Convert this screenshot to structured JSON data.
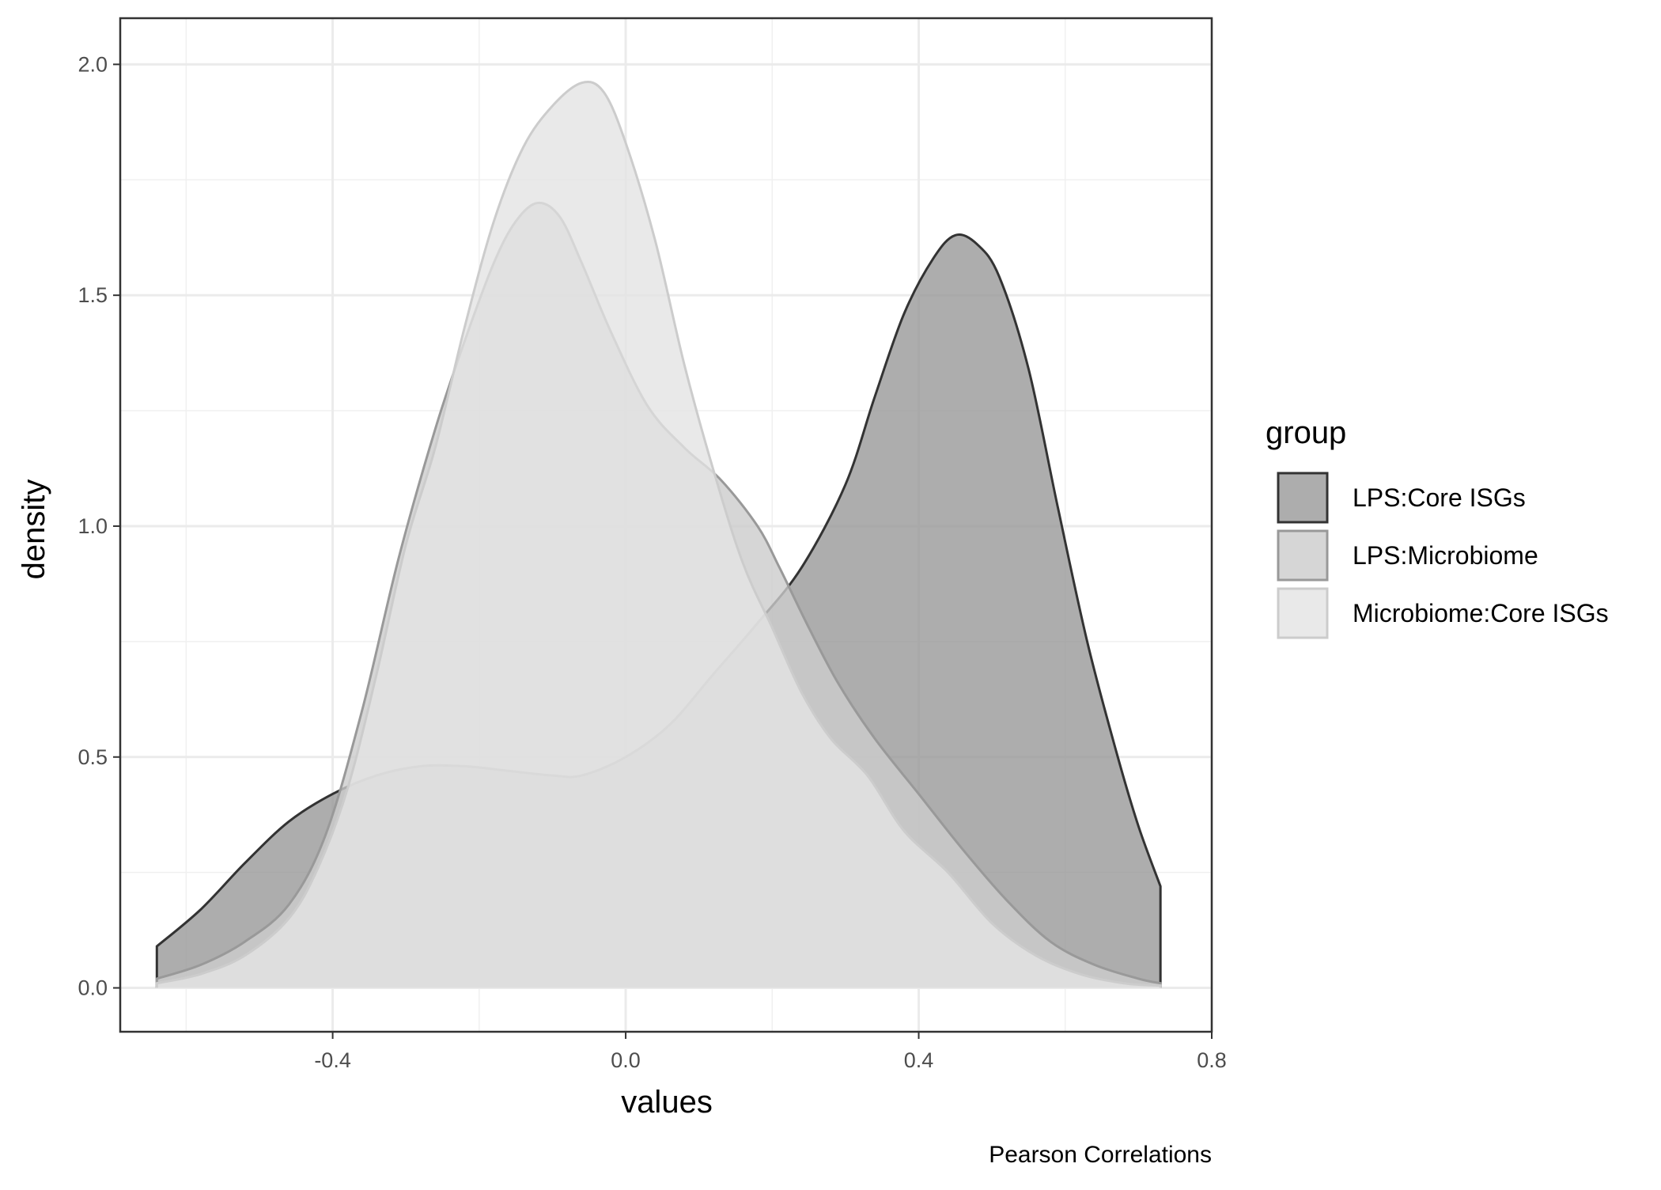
{
  "chart_data": {
    "type": "area",
    "subtype": "density",
    "xlabel": "values",
    "ylabel": "density",
    "caption": "Pearson Correlations",
    "xlim": [
      -0.69,
      0.8
    ],
    "ylim": [
      -0.095,
      2.1
    ],
    "x_ticks": [
      -0.4,
      0.0,
      0.4,
      0.8
    ],
    "x_tick_labels": [
      "-0.4",
      "0.0",
      "0.4",
      "0.8"
    ],
    "y_ticks": [
      0.0,
      0.5,
      1.0,
      1.5,
      2.0
    ],
    "y_tick_labels": [
      "0.0",
      "0.5",
      "1.0",
      "1.5",
      "2.0"
    ],
    "grid": true,
    "legend": {
      "title": "group",
      "position": "right"
    },
    "series": [
      {
        "name": "LPS:Core ISGs",
        "fill": "#999999",
        "stroke": "#333333",
        "points": [
          [
            -0.64,
            0.09
          ],
          [
            -0.58,
            0.17
          ],
          [
            -0.52,
            0.27
          ],
          [
            -0.46,
            0.36
          ],
          [
            -0.4,
            0.42
          ],
          [
            -0.34,
            0.46
          ],
          [
            -0.28,
            0.48
          ],
          [
            -0.22,
            0.48
          ],
          [
            -0.16,
            0.47
          ],
          [
            -0.1,
            0.46
          ],
          [
            -0.06,
            0.46
          ],
          [
            0.0,
            0.5
          ],
          [
            0.06,
            0.57
          ],
          [
            0.12,
            0.68
          ],
          [
            0.18,
            0.79
          ],
          [
            0.24,
            0.91
          ],
          [
            0.3,
            1.09
          ],
          [
            0.34,
            1.28
          ],
          [
            0.38,
            1.46
          ],
          [
            0.42,
            1.58
          ],
          [
            0.45,
            1.63
          ],
          [
            0.48,
            1.61
          ],
          [
            0.51,
            1.54
          ],
          [
            0.55,
            1.34
          ],
          [
            0.59,
            1.04
          ],
          [
            0.63,
            0.75
          ],
          [
            0.67,
            0.51
          ],
          [
            0.7,
            0.35
          ],
          [
            0.73,
            0.22
          ]
        ]
      },
      {
        "name": "LPS:Microbiome",
        "fill": "#cccccc",
        "stroke": "#999999",
        "points": [
          [
            -0.64,
            0.02
          ],
          [
            -0.58,
            0.05
          ],
          [
            -0.52,
            0.1
          ],
          [
            -0.46,
            0.18
          ],
          [
            -0.41,
            0.33
          ],
          [
            -0.36,
            0.6
          ],
          [
            -0.31,
            0.93
          ],
          [
            -0.26,
            1.21
          ],
          [
            -0.22,
            1.4
          ],
          [
            -0.18,
            1.57
          ],
          [
            -0.15,
            1.66
          ],
          [
            -0.12,
            1.7
          ],
          [
            -0.09,
            1.67
          ],
          [
            -0.06,
            1.57
          ],
          [
            -0.02,
            1.42
          ],
          [
            0.03,
            1.26
          ],
          [
            0.08,
            1.17
          ],
          [
            0.13,
            1.1
          ],
          [
            0.18,
            1.0
          ],
          [
            0.21,
            0.91
          ],
          [
            0.25,
            0.78
          ],
          [
            0.29,
            0.66
          ],
          [
            0.34,
            0.54
          ],
          [
            0.4,
            0.42
          ],
          [
            0.46,
            0.3
          ],
          [
            0.52,
            0.19
          ],
          [
            0.58,
            0.1
          ],
          [
            0.64,
            0.05
          ],
          [
            0.7,
            0.02
          ],
          [
            0.73,
            0.01
          ]
        ]
      },
      {
        "name": "Microbiome:Core ISGs",
        "fill": "#e3e3e3",
        "stroke": "#cccccc",
        "points": [
          [
            -0.64,
            0.01
          ],
          [
            -0.58,
            0.03
          ],
          [
            -0.52,
            0.07
          ],
          [
            -0.46,
            0.15
          ],
          [
            -0.42,
            0.26
          ],
          [
            -0.38,
            0.43
          ],
          [
            -0.34,
            0.68
          ],
          [
            -0.3,
            0.96
          ],
          [
            -0.26,
            1.17
          ],
          [
            -0.22,
            1.43
          ],
          [
            -0.18,
            1.66
          ],
          [
            -0.14,
            1.82
          ],
          [
            -0.1,
            1.91
          ],
          [
            -0.06,
            1.96
          ],
          [
            -0.03,
            1.94
          ],
          [
            0.0,
            1.83
          ],
          [
            0.04,
            1.62
          ],
          [
            0.08,
            1.35
          ],
          [
            0.12,
            1.12
          ],
          [
            0.16,
            0.92
          ],
          [
            0.2,
            0.78
          ],
          [
            0.24,
            0.64
          ],
          [
            0.28,
            0.54
          ],
          [
            0.33,
            0.46
          ],
          [
            0.38,
            0.34
          ],
          [
            0.44,
            0.25
          ],
          [
            0.5,
            0.14
          ],
          [
            0.56,
            0.07
          ],
          [
            0.62,
            0.03
          ],
          [
            0.68,
            0.01
          ],
          [
            0.73,
            0.005
          ]
        ]
      }
    ]
  }
}
